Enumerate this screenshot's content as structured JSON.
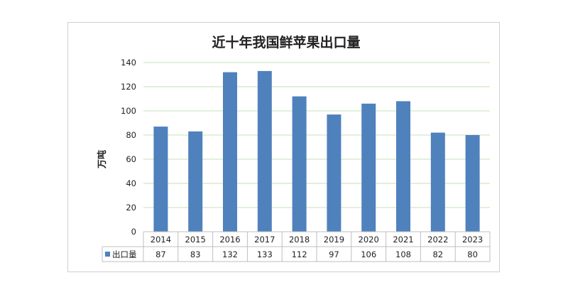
{
  "chart_data": {
    "type": "bar",
    "title": "近十年我国鲜苹果出口量",
    "ylabel": "万吨",
    "xlabel": "",
    "categories": [
      "2014",
      "2015",
      "2016",
      "2017",
      "2018",
      "2019",
      "2020",
      "2021",
      "2022",
      "2023"
    ],
    "series": [
      {
        "name": "出口量",
        "values": [
          87,
          83,
          132,
          133,
          112,
          97,
          106,
          108,
          82,
          80
        ]
      }
    ],
    "ylim": [
      0,
      140
    ],
    "yticks": [
      "0",
      "20",
      "40",
      "60",
      "80",
      "100",
      "120",
      "140"
    ],
    "grid": true,
    "legend": "data-table-left",
    "bar_color": "#4f81bd",
    "grid_color": "#c6e0b4"
  }
}
